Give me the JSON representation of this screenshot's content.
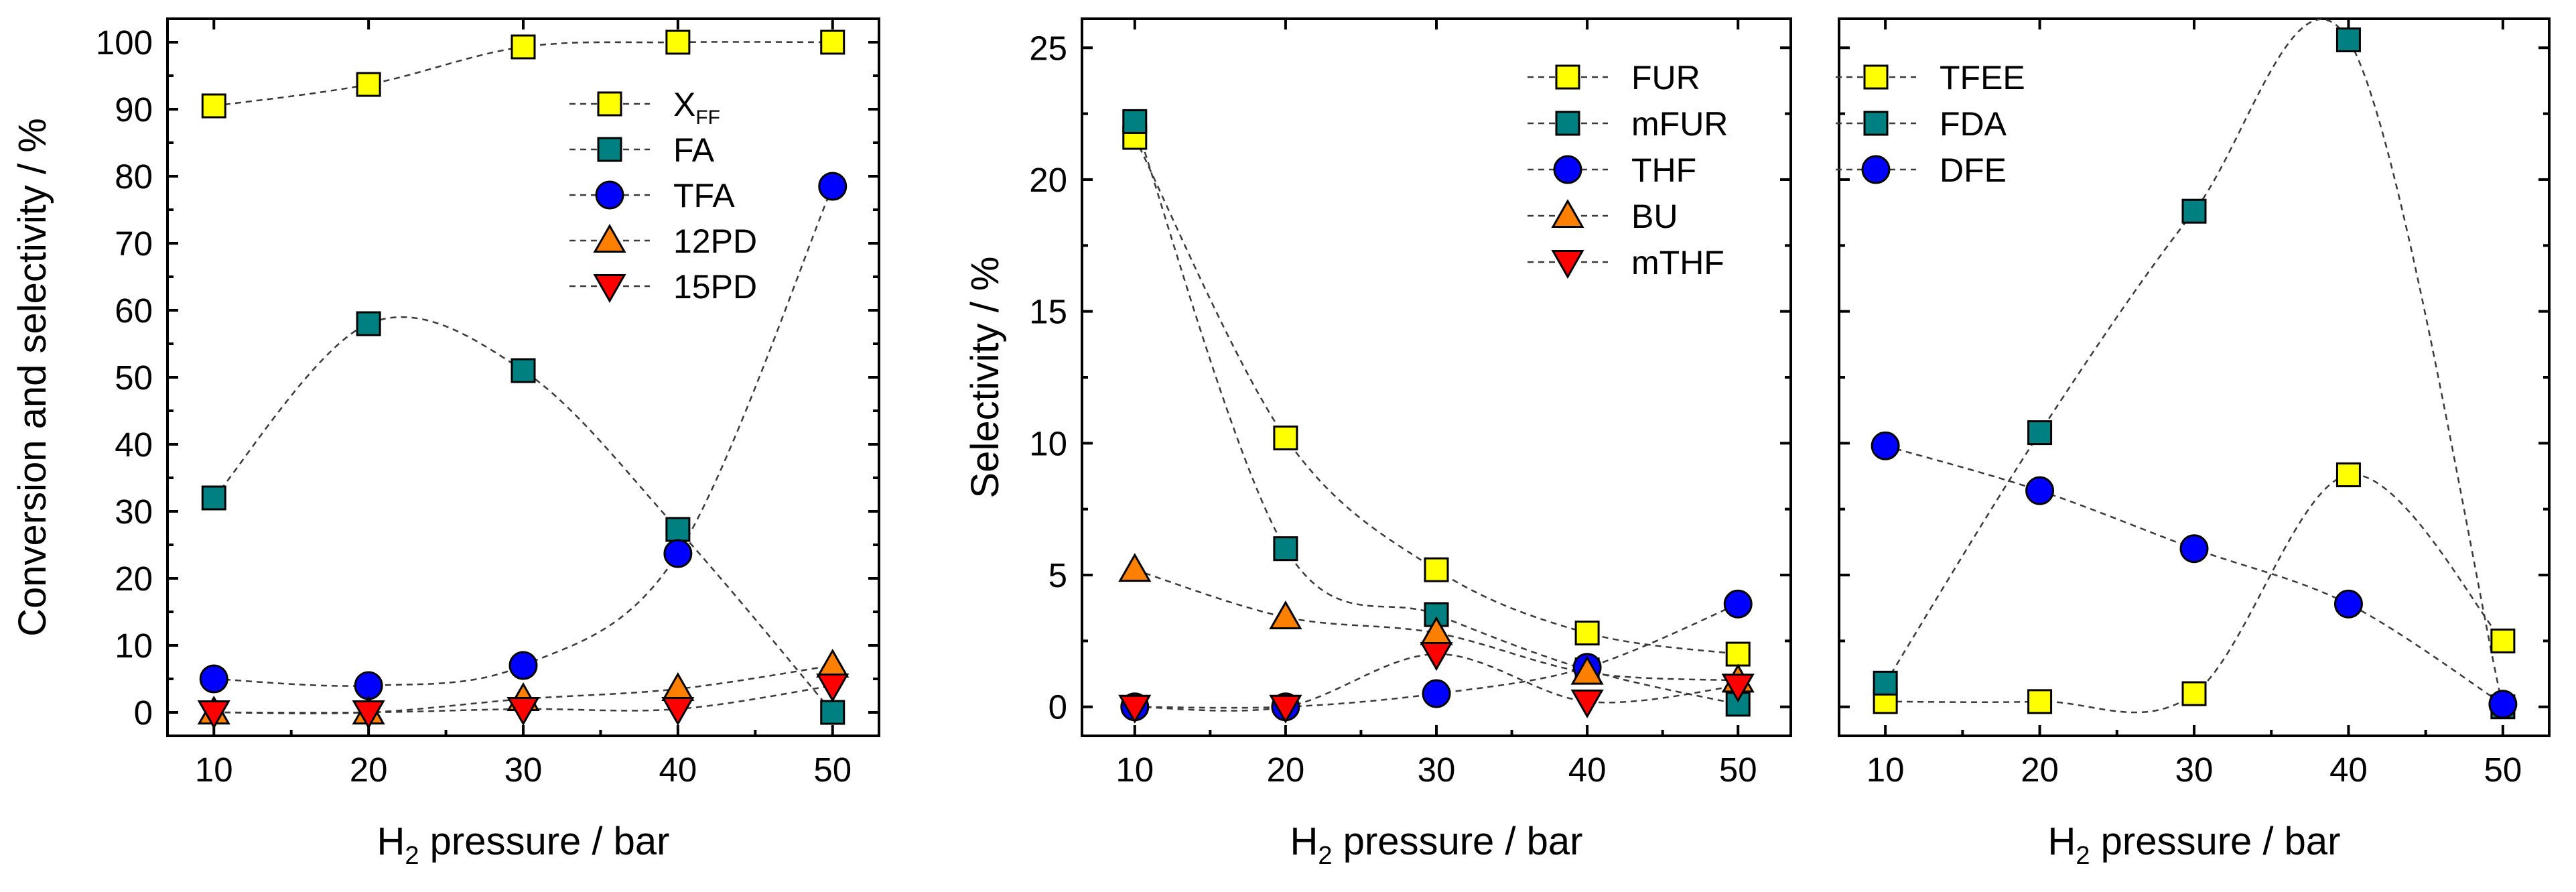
{
  "chart_data": [
    {
      "type": "scatter",
      "title": "",
      "xlabel": "H2 pressure / bar",
      "ylabel": "Conversion and selectivity / %",
      "xlim": [
        7,
        53
      ],
      "ylim": [
        -3.5,
        103.5
      ],
      "xticks": [
        10,
        20,
        30,
        40,
        50
      ],
      "yticks": [
        0,
        10,
        20,
        30,
        40,
        50,
        60,
        70,
        80,
        90,
        100
      ],
      "grid": false,
      "legend_position": "top-right",
      "x": [
        10,
        20,
        30,
        40,
        50
      ],
      "series": [
        {
          "name": "X",
          "name_sub": "FF",
          "marker": "square",
          "color": "#FFFF00",
          "values": [
            90.5,
            93.7,
            99.3,
            100,
            100
          ]
        },
        {
          "name": "FA",
          "marker": "square",
          "color": "#008080",
          "values": [
            32,
            58,
            51,
            27.3,
            0
          ]
        },
        {
          "name": "TFA",
          "marker": "circle",
          "color": "#0000FF",
          "values": [
            5,
            4,
            7,
            23.7,
            78.5
          ]
        },
        {
          "name": "12PD",
          "marker": "triangle-up",
          "color": "#FF8000",
          "values": [
            0,
            0,
            2,
            3.5,
            7
          ]
        },
        {
          "name": "15PD",
          "marker": "triangle-down",
          "color": "#FF0000",
          "values": [
            0,
            0,
            0.5,
            0.5,
            4
          ]
        }
      ]
    },
    {
      "type": "scatter",
      "title": "",
      "xlabel": "H2 pressure / bar",
      "ylabel": "Selectivity / %",
      "xlim": [
        6.5,
        53.5
      ],
      "ylim": [
        -1.1,
        26.1
      ],
      "xticks": [
        10,
        20,
        30,
        40,
        50
      ],
      "yticks": [
        0,
        5,
        10,
        15,
        20,
        25
      ],
      "grid": false,
      "legend_position": "top-right",
      "x": [
        10,
        20,
        30,
        40,
        50
      ],
      "series": [
        {
          "name": "FUR",
          "marker": "square",
          "color": "#FFFF00",
          "values": [
            21.6,
            10.2,
            5.2,
            2.8,
            2
          ]
        },
        {
          "name": "mFUR",
          "marker": "square",
          "color": "#008080",
          "values": [
            22.2,
            6,
            3.5,
            1.4,
            0.1
          ]
        },
        {
          "name": "THF",
          "marker": "circle",
          "color": "#0000FF",
          "values": [
            0,
            0,
            0.5,
            1.5,
            3.9
          ]
        },
        {
          "name": "BU",
          "marker": "triangle-up",
          "color": "#FF8000",
          "values": [
            5.2,
            3.4,
            2.8,
            1.3,
            1
          ]
        },
        {
          "name": "mTHF",
          "marker": "triangle-down",
          "color": "#FF0000",
          "values": [
            0,
            0,
            2,
            0.2,
            0.8
          ]
        }
      ]
    },
    {
      "type": "scatter",
      "title": "",
      "xlabel": "H2 pressure / bar",
      "ylabel": "",
      "xlim": [
        7,
        53
      ],
      "ylim": [
        -1.1,
        26.1
      ],
      "xticks": [
        10,
        20,
        30,
        40,
        50
      ],
      "yticks": [
        0,
        5,
        10,
        15,
        20,
        25
      ],
      "grid": false,
      "legend_position": "top-left",
      "x": [
        10,
        20,
        30,
        40,
        50
      ],
      "series": [
        {
          "name": "TFEE",
          "marker": "square",
          "color": "#FFFF00",
          "values": [
            0.2,
            0.2,
            0.5,
            8.8,
            2.5
          ]
        },
        {
          "name": "FDA",
          "marker": "square",
          "color": "#008080",
          "values": [
            0.9,
            10.4,
            18.8,
            25.3,
            0
          ]
        },
        {
          "name": "DFE",
          "marker": "circle",
          "color": "#0000FF",
          "values": [
            9.9,
            8.2,
            6,
            3.9,
            0.1
          ]
        }
      ]
    }
  ],
  "axis_title_text": {
    "x_main": "H",
    "x_sub": "2",
    "x_rest": " pressure / bar"
  }
}
